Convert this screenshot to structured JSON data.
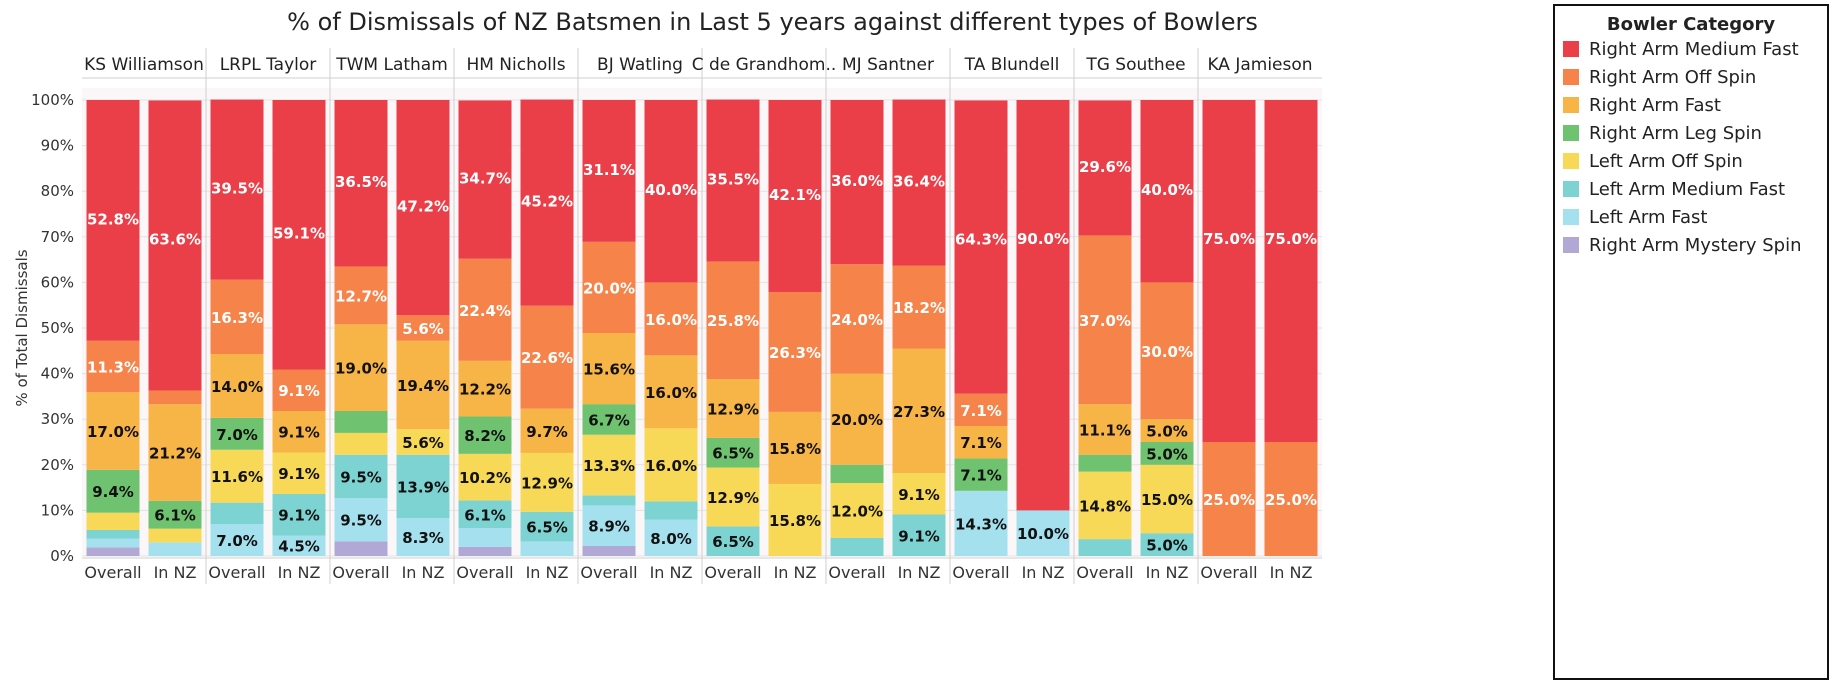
{
  "chart_data": {
    "type": "bar",
    "stacked": true,
    "normalized": true,
    "title": "% of Dismissals of NZ Batsmen in Last 5 years against different types of Bowlers",
    "ylabel": "% of Total Dismissals",
    "ylim": [
      0,
      100
    ],
    "yticks": [
      "0%",
      "10%",
      "20%",
      "30%",
      "40%",
      "50%",
      "60%",
      "70%",
      "80%",
      "90%",
      "100%"
    ],
    "grid": true,
    "legend_title": "Bowler Category",
    "legend_position": "right",
    "categories": [
      "Right Arm Mystery Spin",
      "Left Arm Fast",
      "Left Arm Medium Fast",
      "Left Arm Off Spin",
      "Right Arm Leg Spin",
      "Right Arm Fast",
      "Right Arm Off Spin",
      "Right Arm Medium Fast"
    ],
    "legend_order": [
      "Right Arm Medium Fast",
      "Right Arm Off Spin",
      "Right Arm Fast",
      "Right Arm Leg Spin",
      "Left Arm Off Spin",
      "Left Arm Medium Fast",
      "Left Arm Fast",
      "Right Arm Mystery Spin"
    ],
    "colors": {
      "Right Arm Medium Fast": "#ea3e48",
      "Right Arm Off Spin": "#f5834a",
      "Right Arm Fast": "#f7b447",
      "Right Arm Leg Spin": "#6fc26f",
      "Left Arm Off Spin": "#f8d957",
      "Left Arm Medium Fast": "#7dd3d1",
      "Left Arm Fast": "#a4e0ee",
      "Right Arm Mystery Spin": "#b1a8d5"
    },
    "panels": [
      {
        "name": "KS Williamson",
        "bars": [
          {
            "label": "Overall",
            "values": [
              1.9,
              1.9,
              1.9,
              3.8,
              9.4,
              17.0,
              11.3,
              52.8
            ],
            "shown": [
              "",
              "",
              "",
              "",
              "9.4%",
              "17.0%",
              "11.3%",
              "52.8%"
            ]
          },
          {
            "label": "In NZ",
            "values": [
              0,
              3.0,
              0,
              3.0,
              6.1,
              21.2,
              3.0,
              63.6
            ],
            "shown": [
              "",
              "",
              "",
              "",
              "6.1%",
              "21.2%",
              "",
              "63.6%"
            ]
          }
        ]
      },
      {
        "name": "LRPL Taylor",
        "bars": [
          {
            "label": "Overall",
            "values": [
              0,
              7.0,
              4.7,
              11.6,
              7.0,
              14.0,
              16.3,
              39.5
            ],
            "shown": [
              "",
              "7.0%",
              "",
              "11.6%",
              "7.0%",
              "14.0%",
              "16.3%",
              "39.5%"
            ]
          },
          {
            "label": "In NZ",
            "values": [
              0,
              4.5,
              9.1,
              9.1,
              0,
              9.1,
              9.1,
              59.1
            ],
            "shown": [
              "",
              "4.5%",
              "9.1%",
              "9.1%",
              "",
              "9.1%",
              "9.1%",
              "59.1%"
            ]
          }
        ]
      },
      {
        "name": "TWM Latham",
        "bars": [
          {
            "label": "Overall",
            "values": [
              3.2,
              9.5,
              9.5,
              4.8,
              4.8,
              19.0,
              12.7,
              36.5
            ],
            "shown": [
              "",
              "9.5%",
              "9.5%",
              "",
              "",
              "19.0%",
              "12.7%",
              "36.5%"
            ]
          },
          {
            "label": "In NZ",
            "values": [
              0,
              8.3,
              13.9,
              5.6,
              0,
              19.4,
              5.6,
              47.2
            ],
            "shown": [
              "",
              "8.3%",
              "13.9%",
              "5.6%",
              "",
              "19.4%",
              "5.6%",
              "47.2%"
            ]
          }
        ]
      },
      {
        "name": "HM Nicholls",
        "bars": [
          {
            "label": "Overall",
            "values": [
              2.0,
              4.1,
              6.1,
              10.2,
              8.2,
              12.2,
              22.4,
              34.7
            ],
            "shown": [
              "",
              "",
              "6.1%",
              "10.2%",
              "8.2%",
              "12.2%",
              "22.4%",
              "34.7%"
            ]
          },
          {
            "label": "In NZ",
            "values": [
              0,
              3.2,
              6.5,
              12.9,
              0,
              9.7,
              22.6,
              45.2
            ],
            "shown": [
              "",
              "",
              "6.5%",
              "12.9%",
              "",
              "9.7%",
              "22.6%",
              "45.2%"
            ]
          }
        ]
      },
      {
        "name": "BJ Watling",
        "bars": [
          {
            "label": "Overall",
            "values": [
              2.2,
              8.9,
              2.2,
              13.3,
              6.7,
              15.6,
              20.0,
              31.1
            ],
            "shown": [
              "",
              "8.9%",
              "",
              "13.3%",
              "6.7%",
              "15.6%",
              "20.0%",
              "31.1%"
            ]
          },
          {
            "label": "In NZ",
            "values": [
              0,
              8.0,
              4.0,
              16.0,
              0,
              16.0,
              16.0,
              40.0
            ],
            "shown": [
              "",
              "8.0%",
              "",
              "16.0%",
              "",
              "16.0%",
              "16.0%",
              "40.0%"
            ]
          }
        ]
      },
      {
        "name": "C de Grandhom..",
        "bars": [
          {
            "label": "Overall",
            "values": [
              0,
              0,
              6.5,
              12.9,
              6.5,
              12.9,
              25.8,
              35.5
            ],
            "shown": [
              "",
              "",
              "6.5%",
              "12.9%",
              "6.5%",
              "12.9%",
              "25.8%",
              "35.5%"
            ]
          },
          {
            "label": "In NZ",
            "values": [
              0,
              0,
              0,
              15.8,
              0,
              15.8,
              26.3,
              42.1
            ],
            "shown": [
              "",
              "",
              "",
              "15.8%",
              "",
              "15.8%",
              "26.3%",
              "42.1%"
            ]
          }
        ]
      },
      {
        "name": "MJ Santner",
        "bars": [
          {
            "label": "Overall",
            "values": [
              0,
              0,
              4.0,
              12.0,
              4.0,
              20.0,
              24.0,
              36.0
            ],
            "shown": [
              "",
              "",
              "",
              "12.0%",
              "",
              "20.0%",
              "24.0%",
              "36.0%"
            ]
          },
          {
            "label": "In NZ",
            "values": [
              0,
              0,
              9.1,
              9.1,
              0,
              27.3,
              18.2,
              36.4
            ],
            "shown": [
              "",
              "",
              "9.1%",
              "9.1%",
              "",
              "27.3%",
              "18.2%",
              "36.4%"
            ]
          }
        ]
      },
      {
        "name": "TA Blundell",
        "bars": [
          {
            "label": "Overall",
            "values": [
              0,
              14.3,
              0,
              0,
              7.1,
              7.1,
              7.1,
              64.3
            ],
            "shown": [
              "",
              "14.3%",
              "",
              "",
              "7.1%",
              "7.1%",
              "7.1%",
              "64.3%"
            ]
          },
          {
            "label": "In NZ",
            "values": [
              0,
              10.0,
              0,
              0,
              0,
              0,
              0,
              90.0
            ],
            "shown": [
              "",
              "10.0%",
              "",
              "",
              "",
              "",
              "",
              "90.0%"
            ]
          }
        ]
      },
      {
        "name": "TG Southee",
        "bars": [
          {
            "label": "Overall",
            "values": [
              0,
              0,
              3.7,
              14.8,
              3.7,
              11.1,
              37.0,
              29.6
            ],
            "shown": [
              "",
              "",
              "",
              "14.8%",
              "",
              "11.1%",
              "37.0%",
              "29.6%"
            ]
          },
          {
            "label": "In NZ",
            "values": [
              0,
              0,
              5.0,
              15.0,
              5.0,
              5.0,
              30.0,
              40.0
            ],
            "shown": [
              "",
              "",
              "5.0%",
              "15.0%",
              "5.0%",
              "5.0%",
              "30.0%",
              "40.0%"
            ]
          }
        ]
      },
      {
        "name": "KA Jamieson",
        "bars": [
          {
            "label": "Overall",
            "values": [
              0,
              0,
              0,
              0,
              0,
              0,
              25.0,
              75.0
            ],
            "shown": [
              "",
              "",
              "",
              "",
              "",
              "",
              "25.0%",
              "75.0%"
            ]
          },
          {
            "label": "In NZ",
            "values": [
              0,
              0,
              0,
              0,
              0,
              0,
              25.0,
              75.0
            ],
            "shown": [
              "",
              "",
              "",
              "",
              "",
              "",
              "25.0%",
              "75.0%"
            ]
          }
        ]
      }
    ]
  }
}
